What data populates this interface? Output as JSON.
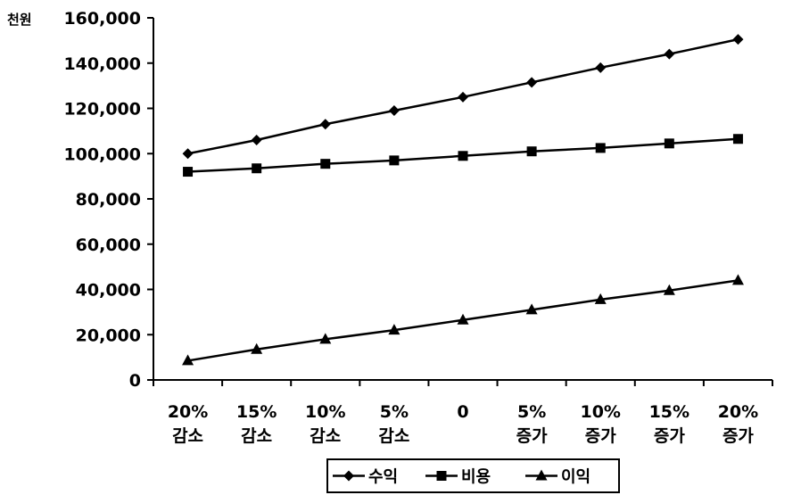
{
  "chart_data": {
    "type": "line",
    "ylabel": "천원",
    "ylim": [
      0,
      160000
    ],
    "yticks": [
      "0",
      "20,000",
      "40,000",
      "60,000",
      "80,000",
      "100,000",
      "120,000",
      "140,000",
      "160,000"
    ],
    "ytick_values": [
      0,
      20000,
      40000,
      60000,
      80000,
      100000,
      120000,
      140000,
      160000
    ],
    "categories": [
      [
        "20%",
        "감소"
      ],
      [
        "15%",
        "감소"
      ],
      [
        "10%",
        "감소"
      ],
      [
        "5%",
        "감소"
      ],
      [
        "0",
        ""
      ],
      [
        "5%",
        "증가"
      ],
      [
        "10%",
        "증가"
      ],
      [
        "15%",
        "증가"
      ],
      [
        "20%",
        "증가"
      ]
    ],
    "series": [
      {
        "name": "수익",
        "marker": "diamond",
        "values": [
          100000,
          106000,
          113000,
          119000,
          125000,
          131500,
          138000,
          144000,
          150500
        ]
      },
      {
        "name": "비용",
        "marker": "square",
        "values": [
          92000,
          93500,
          95500,
          97000,
          99000,
          101000,
          102500,
          104500,
          106500
        ]
      },
      {
        "name": "이익",
        "marker": "triangle",
        "values": [
          8500,
          13500,
          18000,
          22000,
          26500,
          31000,
          35500,
          39500,
          44000
        ]
      }
    ],
    "legend_position": "bottom",
    "grid": false,
    "color": "#000000"
  }
}
